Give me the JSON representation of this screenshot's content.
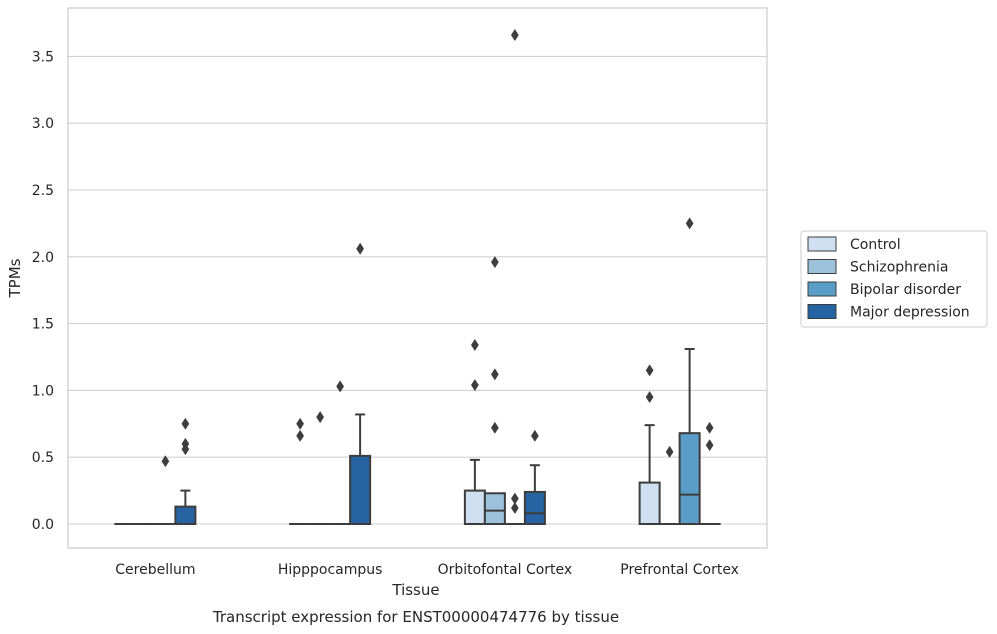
{
  "chart_data": {
    "type": "box",
    "caption": "Transcript expression for ENST00000474776 by tissue",
    "xlabel": "Tissue",
    "ylabel": "TPMs",
    "ylim": [
      -0.18,
      3.85
    ],
    "yticks": [
      "0.0",
      "0.5",
      "1.0",
      "1.5",
      "2.0",
      "2.5",
      "3.0",
      "3.5"
    ],
    "categories": [
      "Cerebellum",
      "Hipppocampus",
      "Orbitofontal Cortex",
      "Prefrontal Cortex"
    ],
    "grid": "horizontal",
    "legend_position": "right",
    "series": [
      {
        "name": "Control",
        "color": "#cfe0f0",
        "boxes": [
          {
            "q1": 0,
            "median": 0,
            "q3": 0,
            "whisker_low": 0,
            "whisker_high": 0,
            "outliers": []
          },
          {
            "q1": 0,
            "median": 0,
            "q3": 0,
            "whisker_low": 0,
            "whisker_high": 0,
            "outliers": [
              0.66,
              0.75
            ]
          },
          {
            "q1": 0,
            "median": 0,
            "q3": 0.25,
            "whisker_low": 0,
            "whisker_high": 0.48,
            "outliers": [
              1.04,
              1.34
            ]
          },
          {
            "q1": 0,
            "median": 0,
            "q3": 0.31,
            "whisker_low": 0,
            "whisker_high": 0.74,
            "outliers": [
              0.95,
              1.15
            ]
          }
        ]
      },
      {
        "name": "Schizophrenia",
        "color": "#9cc3db",
        "boxes": [
          {
            "q1": 0,
            "median": 0,
            "q3": 0,
            "whisker_low": 0,
            "whisker_high": 0,
            "outliers": []
          },
          {
            "q1": 0,
            "median": 0,
            "q3": 0,
            "whisker_low": 0,
            "whisker_high": 0,
            "outliers": [
              0.8
            ]
          },
          {
            "q1": 0,
            "median": 0.1,
            "q3": 0.23,
            "whisker_low": 0,
            "whisker_high": 0.23,
            "outliers": [
              0.72,
              1.12,
              1.96
            ]
          },
          {
            "q1": 0,
            "median": 0,
            "q3": 0,
            "whisker_low": 0,
            "whisker_high": 0,
            "outliers": [
              0.54
            ]
          }
        ]
      },
      {
        "name": "Bipolar disorder",
        "color": "#5a9ec8",
        "boxes": [
          {
            "q1": 0,
            "median": 0,
            "q3": 0,
            "whisker_low": 0,
            "whisker_high": 0,
            "outliers": [
              0.47
            ]
          },
          {
            "q1": 0,
            "median": 0,
            "q3": 0,
            "whisker_low": 0,
            "whisker_high": 0,
            "outliers": [
              1.03
            ]
          },
          {
            "q1": 0,
            "median": 0,
            "q3": 0,
            "whisker_low": 0,
            "whisker_high": 0,
            "outliers": [
              0.12,
              0.19,
              3.66
            ]
          },
          {
            "q1": 0,
            "median": 0.22,
            "q3": 0.68,
            "whisker_low": 0,
            "whisker_high": 1.31,
            "outliers": [
              2.25
            ]
          }
        ]
      },
      {
        "name": "Major depression",
        "color": "#2563a3",
        "boxes": [
          {
            "q1": 0,
            "median": 0,
            "q3": 0.13,
            "whisker_low": 0,
            "whisker_high": 0.25,
            "outliers": [
              0.56,
              0.6,
              0.75
            ]
          },
          {
            "q1": 0,
            "median": 0,
            "q3": 0.51,
            "whisker_low": 0,
            "whisker_high": 0.82,
            "outliers": [
              2.06
            ]
          },
          {
            "q1": 0,
            "median": 0.08,
            "q3": 0.24,
            "whisker_low": 0,
            "whisker_high": 0.44,
            "outliers": [
              0.66
            ]
          },
          {
            "q1": 0,
            "median": 0,
            "q3": 0,
            "whisker_low": 0,
            "whisker_high": 0,
            "outliers": [
              0.59,
              0.72
            ]
          }
        ]
      }
    ]
  }
}
